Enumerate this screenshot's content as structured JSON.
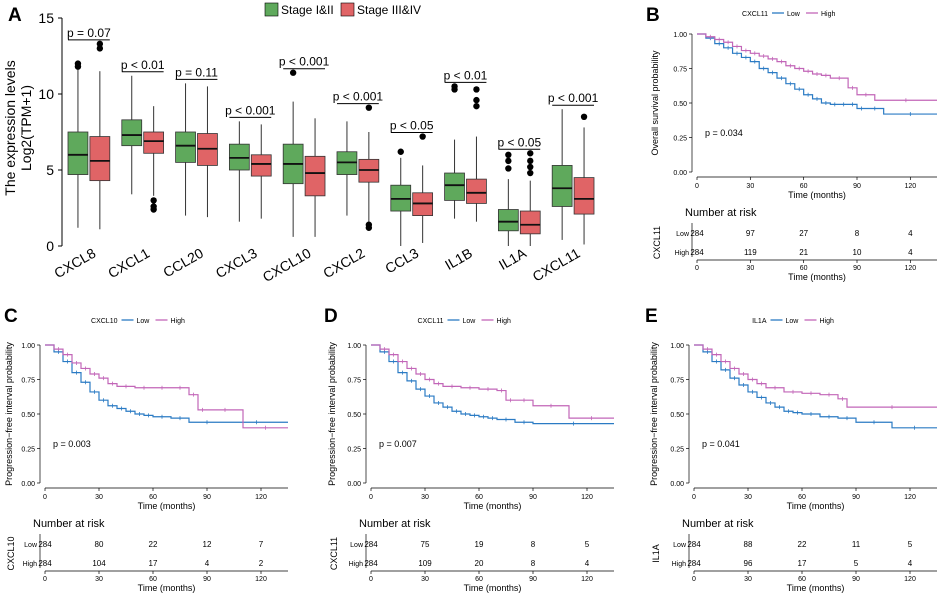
{
  "colors": {
    "stage_early": "#5fa95c",
    "stage_late": "#e06466",
    "km_low": "#2b7bc4",
    "km_high": "#c266b8",
    "axis": "#000000"
  },
  "chart_data": [
    {
      "panel": "A",
      "type": "box",
      "ylabel_line1": "The expression levels",
      "ylabel_line2": "Log2(TPM+1)",
      "ylim": [
        0,
        15
      ],
      "yticks": [
        0,
        5,
        10,
        15
      ],
      "legend": [
        "Stage I&II",
        "Stage III&IV"
      ],
      "legend_position": "top",
      "categories": [
        "CXCL8",
        "CXCL1",
        "CCL20",
        "CXCL3",
        "CXCL10",
        "CXCL2",
        "CCL3",
        "IL1B",
        "IL1A",
        "CXCL11"
      ],
      "pvalues": [
        "p = 0.07",
        "p < 0.01",
        "p = 0.11",
        "p < 0.001",
        "p < 0.001",
        "p < 0.001",
        "p < 0.05",
        "p < 0.01",
        "p < 0.05",
        "p < 0.001"
      ],
      "series": [
        {
          "name": "Stage I&II",
          "boxes": [
            {
              "lo": 1.2,
              "q1": 4.7,
              "med": 6.0,
              "q3": 7.5,
              "hi": 11.6,
              "out": [
                12.0,
                11.8
              ]
            },
            {
              "lo": 3.4,
              "q1": 6.6,
              "med": 7.3,
              "q3": 8.3,
              "hi": 11.2,
              "out": []
            },
            {
              "lo": 2.0,
              "q1": 5.5,
              "med": 6.6,
              "q3": 7.5,
              "hi": 10.7,
              "out": []
            },
            {
              "lo": 1.6,
              "q1": 5.0,
              "med": 5.8,
              "q3": 6.7,
              "hi": 8.2,
              "out": []
            },
            {
              "lo": 0.6,
              "q1": 4.1,
              "med": 5.4,
              "q3": 6.7,
              "hi": 9.5,
              "out": [
                11.4
              ]
            },
            {
              "lo": 2.0,
              "q1": 4.7,
              "med": 5.5,
              "q3": 6.2,
              "hi": 8.2,
              "out": []
            },
            {
              "lo": 0.0,
              "q1": 2.3,
              "med": 3.1,
              "q3": 4.0,
              "hi": 5.8,
              "out": [
                6.2
              ]
            },
            {
              "lo": 1.8,
              "q1": 3.0,
              "med": 4.0,
              "q3": 4.8,
              "hi": 7.0,
              "out": [
                10.3,
                10.5
              ]
            },
            {
              "lo": 0.0,
              "q1": 1.0,
              "med": 1.6,
              "q3": 2.4,
              "hi": 4.4,
              "out": [
                5.1,
                5.6,
                6.0
              ]
            },
            {
              "lo": 0.4,
              "q1": 2.6,
              "med": 3.8,
              "q3": 5.3,
              "hi": 9.0,
              "out": []
            }
          ]
        },
        {
          "name": "Stage III&IV",
          "boxes": [
            {
              "lo": 1.1,
              "q1": 4.3,
              "med": 5.6,
              "q3": 7.2,
              "hi": 11.5,
              "out": [
                13.0,
                13.3
              ]
            },
            {
              "lo": 3.3,
              "q1": 6.1,
              "med": 6.9,
              "q3": 7.5,
              "hi": 9.2,
              "out": [
                3.0,
                2.6,
                2.4
              ]
            },
            {
              "lo": 1.9,
              "q1": 5.3,
              "med": 6.4,
              "q3": 7.4,
              "hi": 10.5,
              "out": []
            },
            {
              "lo": 1.8,
              "q1": 4.6,
              "med": 5.4,
              "q3": 6.0,
              "hi": 8.0,
              "out": []
            },
            {
              "lo": 0.6,
              "q1": 3.3,
              "med": 4.8,
              "q3": 5.9,
              "hi": 8.4,
              "out": []
            },
            {
              "lo": 1.6,
              "q1": 4.2,
              "med": 5.0,
              "q3": 5.7,
              "hi": 7.5,
              "out": [
                9.1,
                1.4,
                1.2
              ]
            },
            {
              "lo": 0.2,
              "q1": 2.0,
              "med": 2.8,
              "q3": 3.5,
              "hi": 5.3,
              "out": [
                7.2
              ]
            },
            {
              "lo": 1.6,
              "q1": 2.8,
              "med": 3.5,
              "q3": 4.4,
              "hi": 7.2,
              "out": [
                9.2,
                9.6,
                10.3
              ]
            },
            {
              "lo": 0.0,
              "q1": 0.8,
              "med": 1.4,
              "q3": 2.3,
              "hi": 4.3,
              "out": [
                4.8,
                5.2,
                5.6,
                6.1
              ]
            },
            {
              "lo": 0.1,
              "q1": 2.1,
              "med": 3.1,
              "q3": 4.5,
              "hi": 7.8,
              "out": [
                8.5
              ]
            }
          ]
        }
      ]
    },
    {
      "panel": "B",
      "type": "line",
      "subtype": "kaplan-meier",
      "gene": "CXCL11",
      "legend_low": "Low",
      "legend_high": "High",
      "legend_position": "top",
      "ylabel": "Overall survival probability",
      "xlabel": "Time (months)",
      "xlim": [
        0,
        135
      ],
      "xticks": [
        0,
        30,
        60,
        90,
        120
      ],
      "ylim": [
        0,
        1
      ],
      "yticks": [
        "0.00",
        "0.25",
        "0.50",
        "0.75",
        "1.00"
      ],
      "pvalue": "p = 0.034",
      "risk_title": "Number at risk",
      "risk_low_label": "Low",
      "risk_high_label": "High",
      "risk_low": [
        "284",
        "97",
        "27",
        "8",
        "4"
      ],
      "risk_high": [
        "284",
        "119",
        "21",
        "10",
        "4"
      ],
      "series": [
        {
          "name": "Low",
          "x": [
            0,
            5,
            10,
            15,
            20,
            25,
            30,
            35,
            40,
            45,
            50,
            55,
            60,
            65,
            70,
            75,
            80,
            85,
            90,
            95,
            105,
            135
          ],
          "y": [
            1.0,
            0.97,
            0.93,
            0.9,
            0.86,
            0.83,
            0.8,
            0.75,
            0.72,
            0.68,
            0.64,
            0.6,
            0.56,
            0.53,
            0.5,
            0.49,
            0.49,
            0.49,
            0.46,
            0.46,
            0.42,
            0.42
          ]
        },
        {
          "name": "High",
          "x": [
            0,
            5,
            10,
            15,
            20,
            25,
            30,
            35,
            40,
            45,
            50,
            55,
            60,
            65,
            70,
            75,
            85,
            90,
            100,
            135
          ],
          "y": [
            1.0,
            0.98,
            0.96,
            0.94,
            0.91,
            0.88,
            0.86,
            0.84,
            0.82,
            0.8,
            0.77,
            0.75,
            0.73,
            0.71,
            0.7,
            0.68,
            0.61,
            0.56,
            0.52,
            0.52
          ]
        }
      ]
    },
    {
      "panel": "C",
      "type": "line",
      "subtype": "kaplan-meier",
      "gene": "CXCL10",
      "legend_low": "Low",
      "legend_high": "High",
      "legend_position": "top",
      "ylabel": "Progression−free interval probability",
      "xlabel": "Time (months)",
      "xlim": [
        0,
        135
      ],
      "xticks": [
        0,
        30,
        60,
        90,
        120
      ],
      "ylim": [
        0,
        1
      ],
      "yticks": [
        "0.00",
        "0.25",
        "0.50",
        "0.75",
        "1.00"
      ],
      "pvalue": "p = 0.003",
      "risk_title": "Number at risk",
      "risk_low_label": "Low",
      "risk_high_label": "High",
      "risk_low": [
        "284",
        "80",
        "22",
        "12",
        "7"
      ],
      "risk_high": [
        "284",
        "104",
        "17",
        "4",
        "2"
      ],
      "series": [
        {
          "name": "Low",
          "x": [
            0,
            5,
            10,
            15,
            20,
            25,
            30,
            35,
            40,
            45,
            50,
            55,
            60,
            70,
            80,
            100,
            135
          ],
          "y": [
            1.0,
            0.95,
            0.88,
            0.8,
            0.73,
            0.66,
            0.6,
            0.56,
            0.54,
            0.52,
            0.5,
            0.49,
            0.48,
            0.47,
            0.44,
            0.44,
            0.44
          ]
        },
        {
          "name": "High",
          "x": [
            0,
            5,
            10,
            15,
            20,
            25,
            30,
            35,
            40,
            50,
            60,
            70,
            80,
            85,
            90,
            110,
            135
          ],
          "y": [
            1.0,
            0.97,
            0.93,
            0.87,
            0.83,
            0.79,
            0.76,
            0.72,
            0.7,
            0.69,
            0.69,
            0.69,
            0.64,
            0.53,
            0.53,
            0.4,
            0.4
          ]
        }
      ]
    },
    {
      "panel": "D",
      "type": "line",
      "subtype": "kaplan-meier",
      "gene": "CXCL11",
      "legend_low": "Low",
      "legend_high": "High",
      "legend_position": "top",
      "ylabel": "Progression−free interval probability",
      "xlabel": "Time (months)",
      "xlim": [
        0,
        135
      ],
      "xticks": [
        0,
        30,
        60,
        90,
        120
      ],
      "ylim": [
        0,
        1
      ],
      "yticks": [
        "0.00",
        "0.25",
        "0.50",
        "0.75",
        "1.00"
      ],
      "pvalue": "p = 0.007",
      "risk_title": "Number at risk",
      "risk_low_label": "Low",
      "risk_high_label": "High",
      "risk_low": [
        "284",
        "75",
        "19",
        "8",
        "5"
      ],
      "risk_high": [
        "284",
        "109",
        "20",
        "8",
        "4"
      ],
      "series": [
        {
          "name": "Low",
          "x": [
            0,
            5,
            10,
            15,
            20,
            25,
            30,
            35,
            40,
            45,
            50,
            55,
            60,
            65,
            70,
            80,
            90,
            135
          ],
          "y": [
            1.0,
            0.95,
            0.88,
            0.8,
            0.74,
            0.68,
            0.63,
            0.58,
            0.55,
            0.52,
            0.5,
            0.49,
            0.48,
            0.47,
            0.46,
            0.44,
            0.43,
            0.43
          ]
        },
        {
          "name": "High",
          "x": [
            0,
            5,
            10,
            15,
            20,
            25,
            30,
            35,
            40,
            50,
            60,
            70,
            75,
            80,
            90,
            110,
            135
          ],
          "y": [
            1.0,
            0.97,
            0.93,
            0.88,
            0.83,
            0.79,
            0.75,
            0.72,
            0.7,
            0.69,
            0.68,
            0.67,
            0.6,
            0.6,
            0.56,
            0.47,
            0.47
          ]
        }
      ]
    },
    {
      "panel": "E",
      "type": "line",
      "subtype": "kaplan-meier",
      "gene": "IL1A",
      "legend_low": "Low",
      "legend_high": "High",
      "legend_position": "top",
      "ylabel": "Progression−free interval probability",
      "xlabel": "Time (months)",
      "xlim": [
        0,
        135
      ],
      "xticks": [
        0,
        30,
        60,
        90,
        120
      ],
      "ylim": [
        0,
        1
      ],
      "yticks": [
        "0.00",
        "0.25",
        "0.50",
        "0.75",
        "1.00"
      ],
      "pvalue": "p = 0.041",
      "risk_title": "Number at risk",
      "risk_low_label": "Low",
      "risk_high_label": "High",
      "risk_low": [
        "284",
        "88",
        "22",
        "11",
        "5"
      ],
      "risk_high": [
        "284",
        "96",
        "17",
        "5",
        "4"
      ],
      "series": [
        {
          "name": "Low",
          "x": [
            0,
            5,
            10,
            15,
            20,
            25,
            30,
            35,
            40,
            45,
            50,
            55,
            60,
            70,
            80,
            90,
            110,
            135
          ],
          "y": [
            1.0,
            0.95,
            0.88,
            0.82,
            0.76,
            0.71,
            0.66,
            0.62,
            0.58,
            0.55,
            0.52,
            0.51,
            0.5,
            0.48,
            0.47,
            0.44,
            0.4,
            0.4
          ]
        },
        {
          "name": "High",
          "x": [
            0,
            5,
            10,
            15,
            20,
            25,
            30,
            35,
            40,
            50,
            60,
            70,
            80,
            85,
            135
          ],
          "y": [
            1.0,
            0.97,
            0.93,
            0.88,
            0.83,
            0.79,
            0.75,
            0.72,
            0.69,
            0.66,
            0.65,
            0.64,
            0.61,
            0.55,
            0.55
          ]
        }
      ]
    }
  ]
}
